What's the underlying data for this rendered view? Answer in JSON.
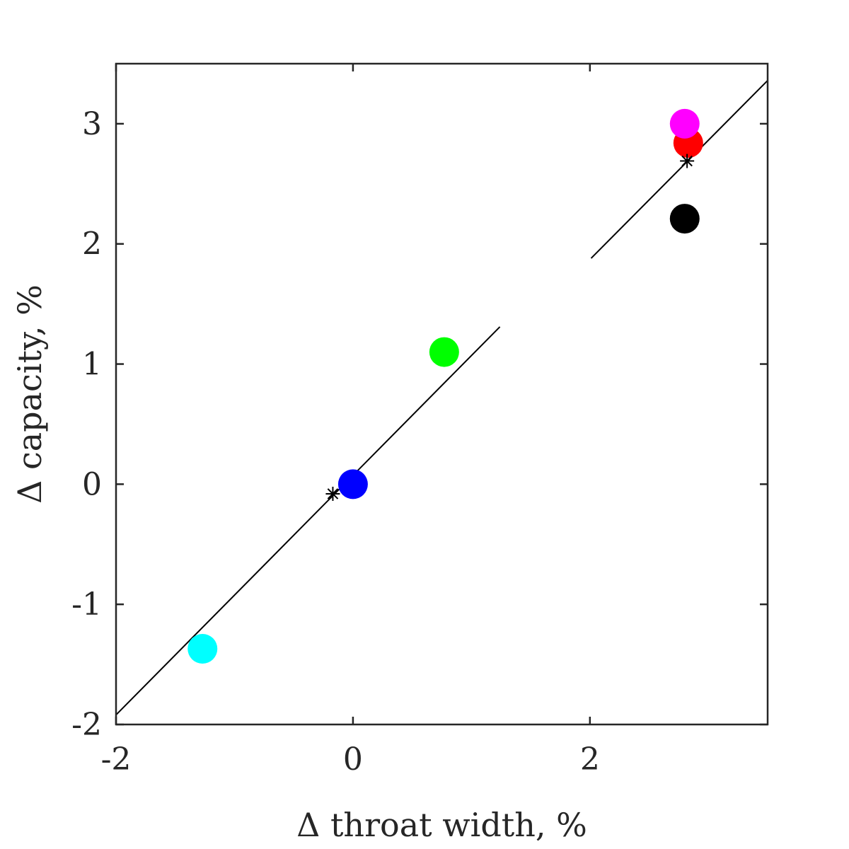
{
  "chart_data": {
    "type": "scatter",
    "title": "",
    "xlabel": "Δ throat width, %",
    "ylabel": "Δ capacity, %",
    "xlim": [
      -2,
      3.5
    ],
    "ylim": [
      -2,
      3.5
    ],
    "x_ticks": [
      -2,
      0,
      2
    ],
    "y_ticks": [
      -2,
      -1,
      0,
      1,
      2,
      3
    ],
    "grid": false,
    "legend": "none",
    "points": [
      {
        "x": 0.0,
        "y": 0.0,
        "color": "#0000ff"
      },
      {
        "x": 0.77,
        "y": 1.1,
        "color": "#00ff00"
      },
      {
        "x": -1.27,
        "y": -1.37,
        "color": "#00ffff"
      },
      {
        "x": 2.83,
        "y": 2.84,
        "color": "#ff0000"
      },
      {
        "x": 2.8,
        "y": 3.0,
        "color": "#ff00ff"
      },
      {
        "x": 2.8,
        "y": 2.21,
        "color": "#000000"
      }
    ],
    "star_markers": [
      {
        "x": -0.17,
        "y": -0.08
      },
      {
        "x": 2.82,
        "y": 2.69
      }
    ],
    "fit_lines": [
      {
        "x": [
          -2,
          1.24
        ],
        "y": [
          -1.92,
          1.31
        ]
      },
      {
        "x": 2.01,
        "y_note": "",
        "x_end": 3.5,
        "y_start": 1.88,
        "y_end": 3.36
      }
    ]
  }
}
